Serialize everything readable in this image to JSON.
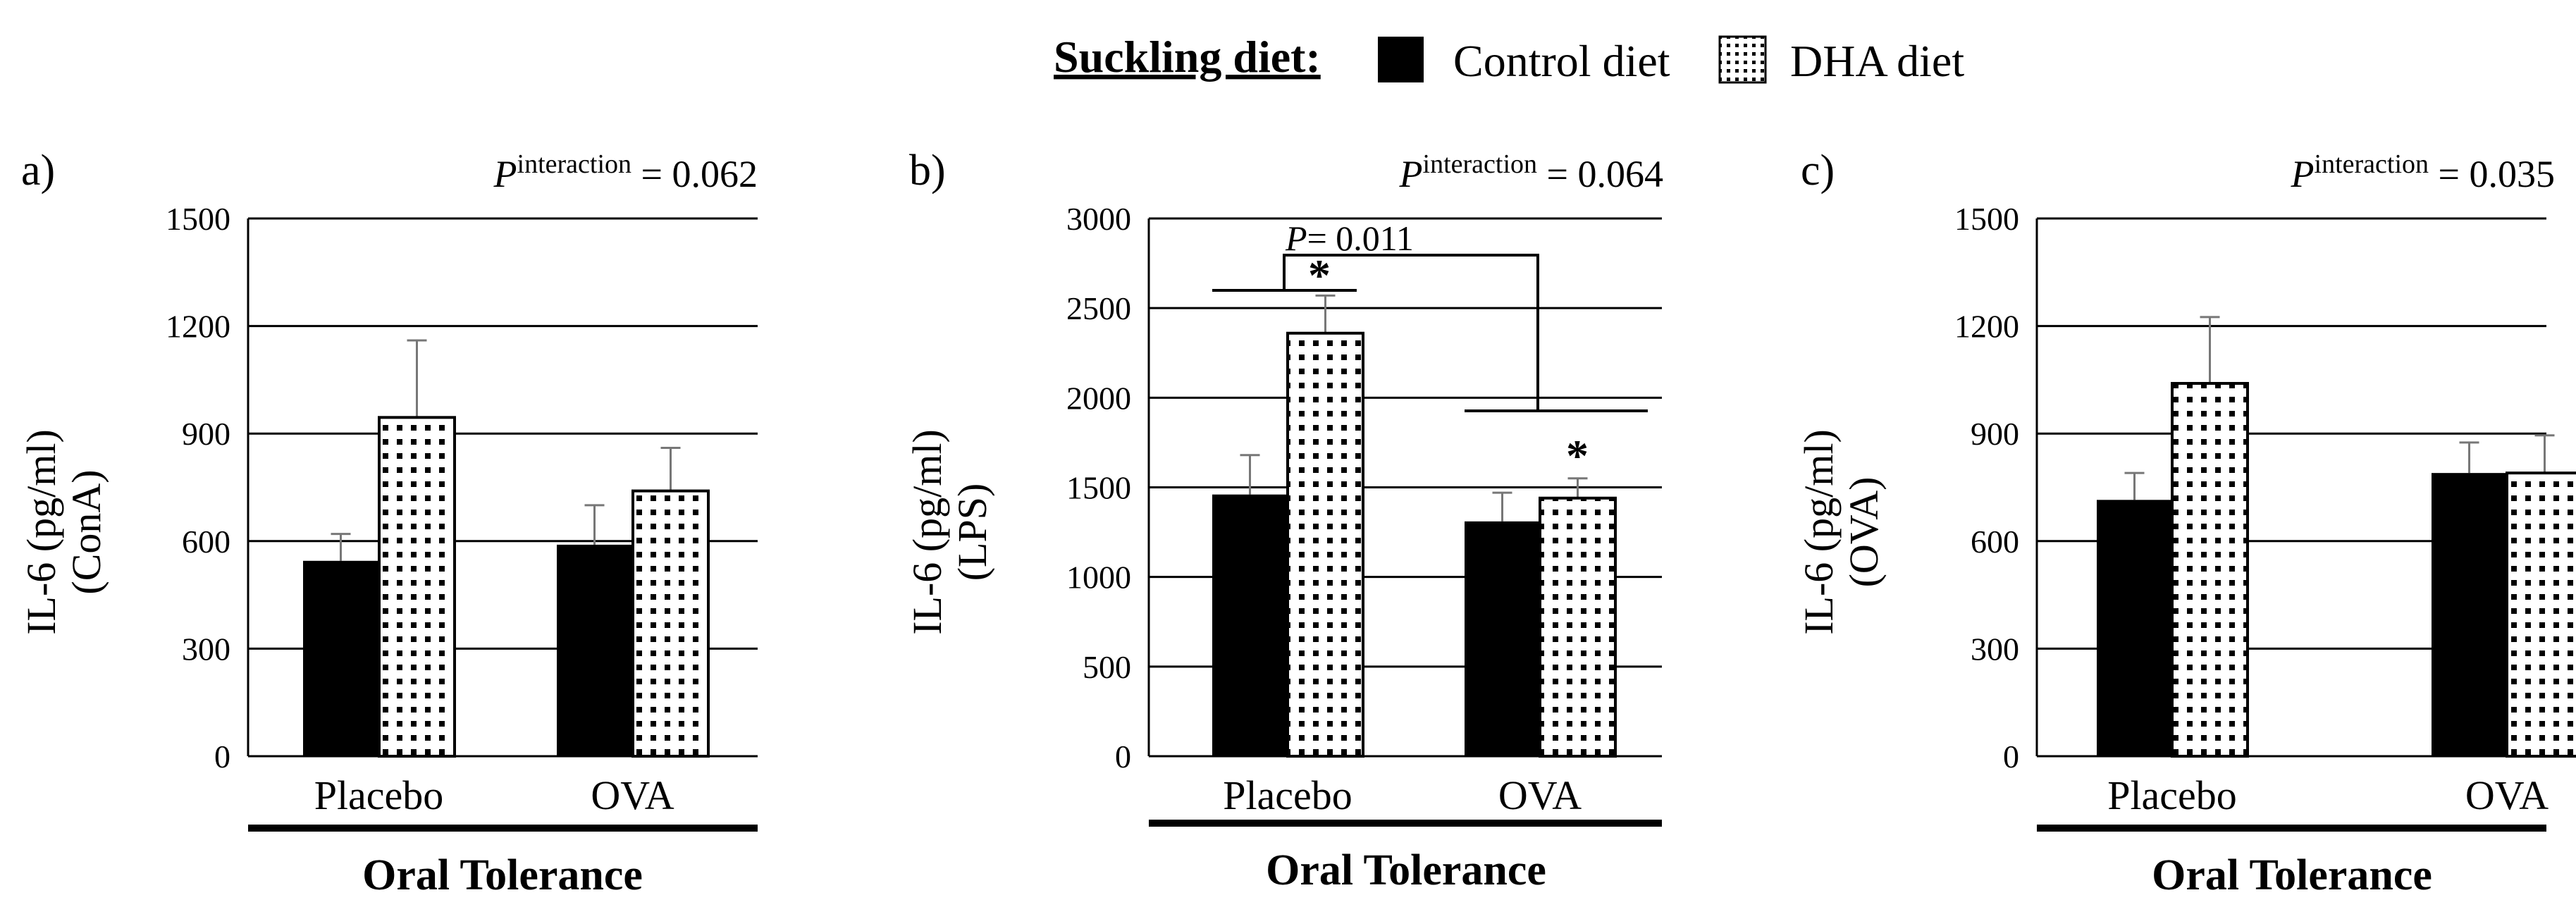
{
  "legend": {
    "title": "Suckling diet:",
    "items": [
      {
        "label": "Control diet",
        "fill": "solid-black"
      },
      {
        "label": "DHA diet",
        "fill": "dotted"
      }
    ]
  },
  "colors": {
    "control": "#000000",
    "dha_bg": "#ffffff",
    "dha_dots": "#000000"
  },
  "chart_data": [
    {
      "type": "bar",
      "panel_label": "a)",
      "p_interaction": {
        "prefix": "P",
        "superscript": "interaction",
        "suffix": " = 0.062"
      },
      "ylabel_line1": "IL-6 (pg/ml)",
      "ylabel_line2": "(ConA)",
      "ylim": [
        0,
        1500
      ],
      "yticks": [
        0,
        300,
        600,
        900,
        1200,
        1500
      ],
      "categories": [
        "Placebo",
        "OVA"
      ],
      "xgroup_label": "Oral Tolerance",
      "series": [
        {
          "name": "Control diet",
          "values": [
            545,
            590
          ],
          "errors": [
            75,
            110
          ]
        },
        {
          "name": "DHA diet",
          "values": [
            945,
            740
          ],
          "errors": [
            215,
            120
          ]
        }
      ],
      "annotations": []
    },
    {
      "type": "bar",
      "panel_label": "b)",
      "p_interaction": {
        "prefix": "P",
        "superscript": "interaction",
        "suffix": " = 0.064"
      },
      "ylabel_line1": "IL-6 (pg/ml)",
      "ylabel_line2": "(LPS)",
      "ylim": [
        0,
        3000
      ],
      "yticks": [
        0,
        500,
        1000,
        1500,
        2000,
        2500,
        3000
      ],
      "categories": [
        "Placebo",
        "OVA"
      ],
      "xgroup_label": "Oral Tolerance",
      "series": [
        {
          "name": "Control diet",
          "values": [
            1460,
            1310
          ],
          "errors": [
            220,
            160
          ]
        },
        {
          "name": "DHA diet",
          "values": [
            2360,
            1440
          ],
          "errors": [
            210,
            110
          ]
        }
      ],
      "annotations": [
        {
          "kind": "star",
          "text": "*",
          "category": "Placebo"
        },
        {
          "kind": "star",
          "text": "*",
          "category": "OVA"
        },
        {
          "kind": "p-bracket",
          "prefix": "P",
          "text": "= 0.011"
        }
      ]
    },
    {
      "type": "bar",
      "panel_label": "c)",
      "p_interaction": {
        "prefix": "P",
        "superscript": "interaction",
        "suffix": " = 0.035"
      },
      "ylabel_line1": "IL-6 (pg/ml)",
      "ylabel_line2": "(OVA)",
      "ylim": [
        0,
        1500
      ],
      "yticks": [
        0,
        300,
        600,
        900,
        1200,
        1500
      ],
      "categories": [
        "Placebo",
        "OVA"
      ],
      "xgroup_label": "Oral Tolerance",
      "series": [
        {
          "name": "Control diet",
          "values": [
            715,
            790
          ],
          "errors": [
            75,
            85
          ]
        },
        {
          "name": "DHA diet",
          "values": [
            1040,
            790
          ],
          "errors": [
            185,
            105
          ]
        }
      ],
      "annotations": []
    }
  ]
}
